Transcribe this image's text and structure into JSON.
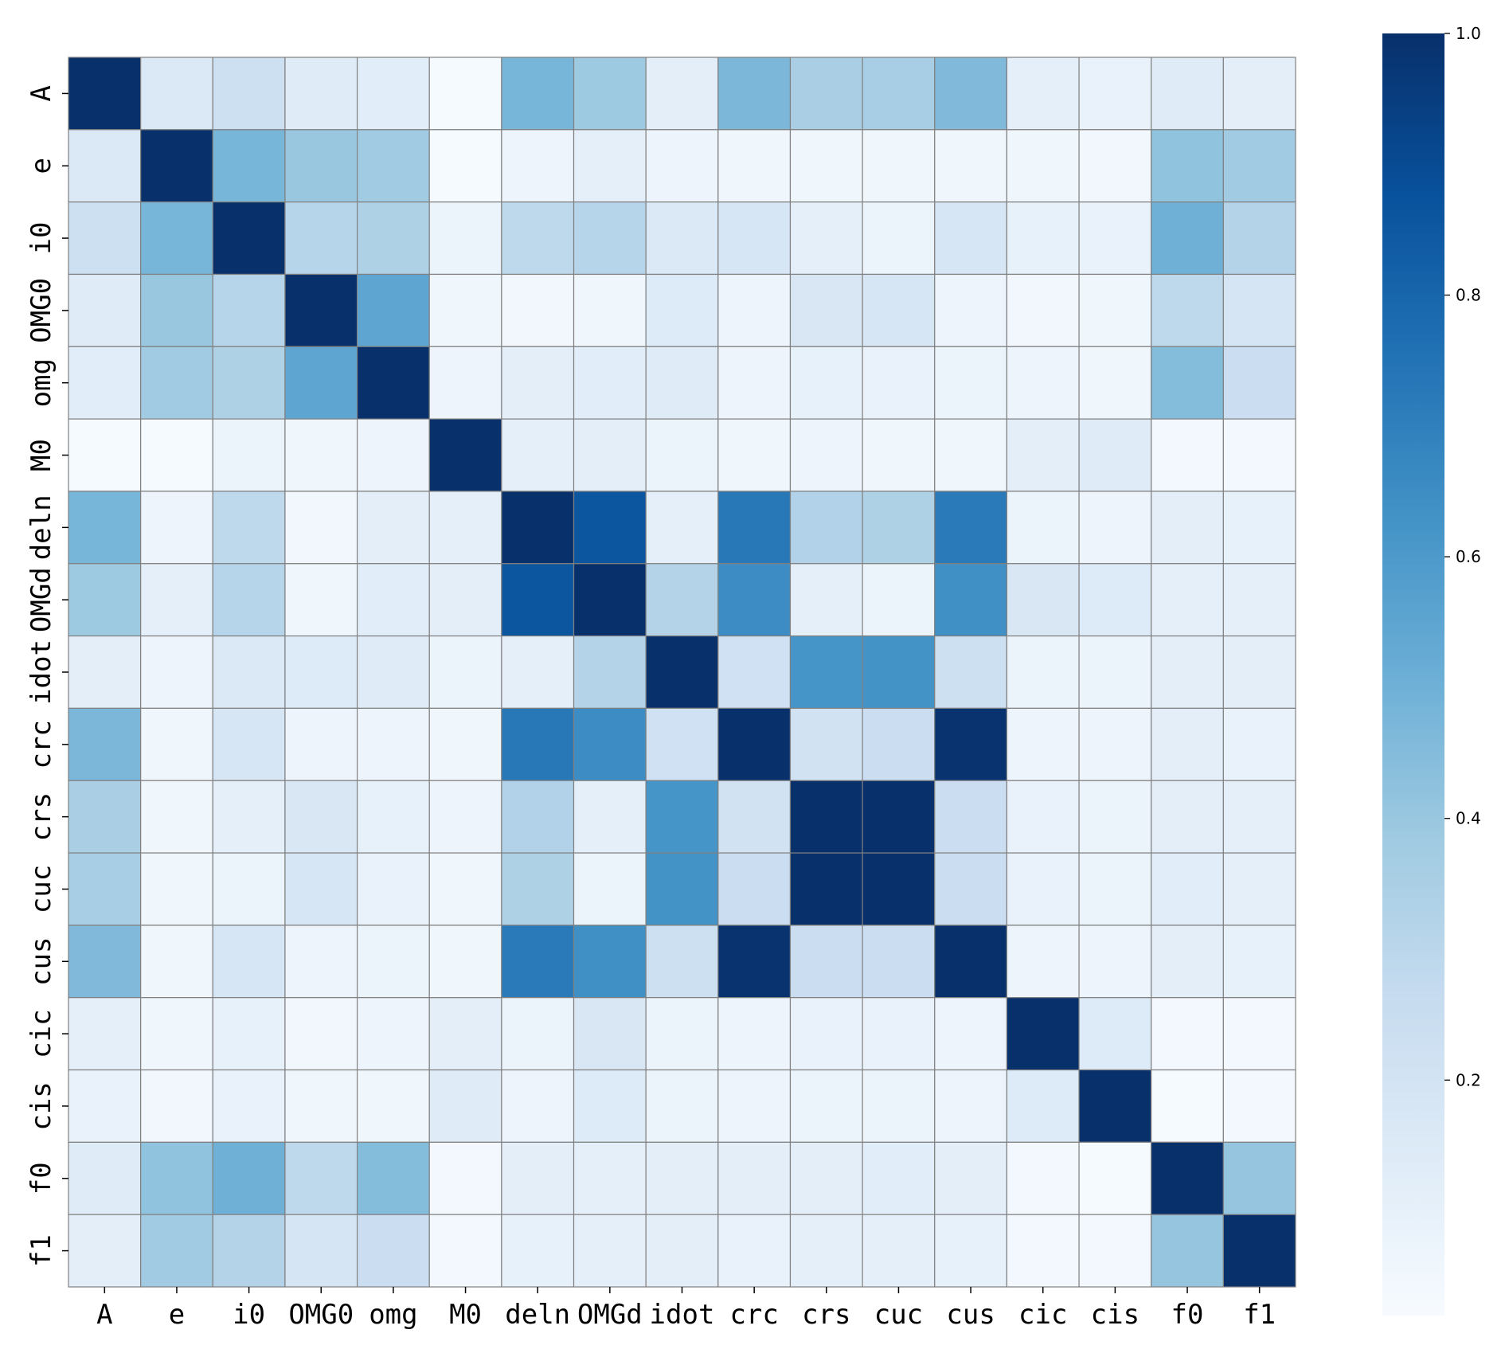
{
  "chart_data": {
    "type": "heatmap",
    "title": "",
    "xlabel": "",
    "ylabel": "",
    "labels": [
      "A",
      "e",
      "i0",
      "OMG0",
      "omg",
      "M0",
      "deln",
      "OMGd",
      "idot",
      "crc",
      "crs",
      "cuc",
      "cus",
      "cic",
      "cis",
      "f0",
      "f1"
    ],
    "values": [
      [
        1.0,
        0.16,
        0.23,
        0.14,
        0.13,
        0.03,
        0.48,
        0.39,
        0.12,
        0.47,
        0.35,
        0.36,
        0.46,
        0.11,
        0.09,
        0.14,
        0.12
      ],
      [
        0.16,
        1.0,
        0.48,
        0.4,
        0.38,
        0.03,
        0.07,
        0.11,
        0.07,
        0.06,
        0.06,
        0.06,
        0.06,
        0.06,
        0.05,
        0.42,
        0.38
      ],
      [
        0.23,
        0.48,
        1.0,
        0.31,
        0.34,
        0.08,
        0.29,
        0.31,
        0.16,
        0.18,
        0.11,
        0.08,
        0.18,
        0.1,
        0.09,
        0.5,
        0.32
      ],
      [
        0.14,
        0.4,
        0.31,
        1.0,
        0.55,
        0.06,
        0.05,
        0.06,
        0.15,
        0.07,
        0.17,
        0.18,
        0.07,
        0.05,
        0.06,
        0.29,
        0.19
      ],
      [
        0.13,
        0.38,
        0.34,
        0.55,
        1.0,
        0.07,
        0.12,
        0.13,
        0.14,
        0.07,
        0.1,
        0.09,
        0.08,
        0.07,
        0.06,
        0.45,
        0.24
      ],
      [
        0.03,
        0.03,
        0.08,
        0.06,
        0.07,
        1.0,
        0.11,
        0.12,
        0.08,
        0.06,
        0.07,
        0.06,
        0.06,
        0.12,
        0.14,
        0.04,
        0.04
      ],
      [
        0.48,
        0.07,
        0.29,
        0.05,
        0.12,
        0.11,
        1.0,
        0.86,
        0.11,
        0.73,
        0.33,
        0.34,
        0.72,
        0.08,
        0.07,
        0.12,
        0.1
      ],
      [
        0.39,
        0.11,
        0.31,
        0.06,
        0.13,
        0.12,
        0.86,
        1.0,
        0.32,
        0.65,
        0.11,
        0.08,
        0.64,
        0.17,
        0.15,
        0.11,
        0.11
      ],
      [
        0.12,
        0.07,
        0.16,
        0.15,
        0.14,
        0.08,
        0.11,
        0.32,
        1.0,
        0.22,
        0.62,
        0.63,
        0.23,
        0.08,
        0.08,
        0.12,
        0.12
      ],
      [
        0.47,
        0.06,
        0.18,
        0.07,
        0.07,
        0.06,
        0.73,
        0.65,
        0.22,
        1.0,
        0.21,
        0.24,
        0.99,
        0.07,
        0.07,
        0.12,
        0.09
      ],
      [
        0.35,
        0.06,
        0.11,
        0.17,
        0.1,
        0.07,
        0.33,
        0.11,
        0.62,
        0.21,
        1.0,
        1.0,
        0.24,
        0.09,
        0.08,
        0.12,
        0.11
      ],
      [
        0.36,
        0.06,
        0.08,
        0.18,
        0.09,
        0.06,
        0.34,
        0.08,
        0.63,
        0.24,
        1.0,
        1.0,
        0.24,
        0.09,
        0.08,
        0.13,
        0.11
      ],
      [
        0.46,
        0.06,
        0.18,
        0.07,
        0.08,
        0.06,
        0.72,
        0.64,
        0.23,
        0.99,
        0.24,
        0.24,
        1.0,
        0.07,
        0.07,
        0.12,
        0.1
      ],
      [
        0.11,
        0.06,
        0.1,
        0.05,
        0.07,
        0.12,
        0.08,
        0.17,
        0.08,
        0.07,
        0.09,
        0.09,
        0.07,
        1.0,
        0.15,
        0.04,
        0.04
      ],
      [
        0.09,
        0.05,
        0.09,
        0.06,
        0.06,
        0.14,
        0.07,
        0.15,
        0.08,
        0.07,
        0.08,
        0.08,
        0.07,
        0.15,
        1.0,
        0.03,
        0.04
      ],
      [
        0.14,
        0.42,
        0.5,
        0.29,
        0.45,
        0.04,
        0.12,
        0.11,
        0.12,
        0.12,
        0.12,
        0.13,
        0.12,
        0.04,
        0.03,
        1.0,
        0.41
      ],
      [
        0.12,
        0.38,
        0.32,
        0.19,
        0.24,
        0.04,
        0.1,
        0.11,
        0.12,
        0.09,
        0.11,
        0.11,
        0.1,
        0.04,
        0.04,
        0.41,
        1.0
      ]
    ],
    "colorbar": {
      "min": 0.02,
      "max": 1.0,
      "ticks": [
        0.2,
        0.4,
        0.6,
        0.8,
        1.0
      ],
      "tick_labels": [
        "0.2",
        "0.4",
        "0.6",
        "0.8",
        "1.0"
      ],
      "colormap": "Blues",
      "color_stops": [
        "#f7fbff",
        "#deebf7",
        "#c6dbef",
        "#9ecae1",
        "#6baed6",
        "#4292c6",
        "#2171b5",
        "#08519c",
        "#08306b"
      ]
    },
    "grid": true,
    "grid_color": "#808080",
    "legend": "colorbar-right"
  }
}
